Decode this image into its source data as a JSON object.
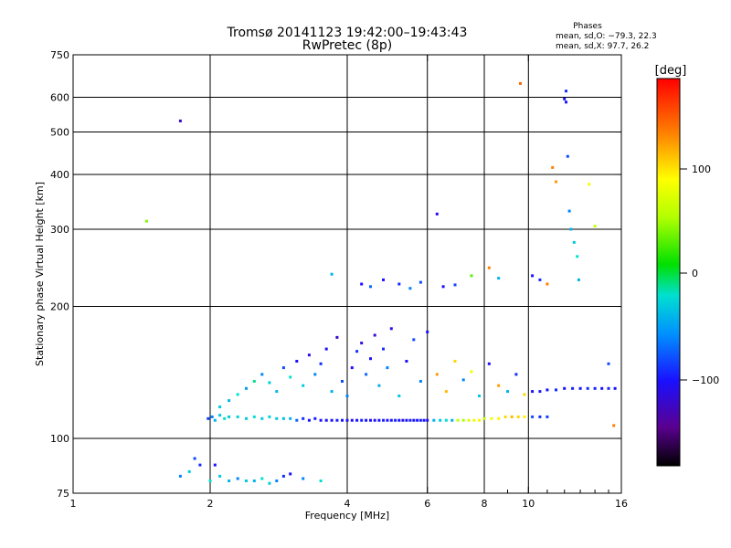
{
  "title_line1": "Tromsø 20141123 19:42:00–19:43:43",
  "title_line2": "RwPretec (8p)",
  "phase_header": "Phases",
  "phase_stats_o": "mean, sd,O: −79.3, 22.3",
  "phase_stats_x": "mean, sd,X:  97.7, 26.2",
  "colorbar_label": "[deg]",
  "colorbar_ticks": [
    "100",
    "0",
    "−100"
  ],
  "chart_data": {
    "type": "scatter",
    "title": "Tromsø 20141123 19:42:00–19:43:43",
    "subtitle": "RwPretec (8p)",
    "xlabel": "Frequency [MHz]",
    "ylabel": "Stationary phase Virtual Height [km]",
    "x_scale": "log2",
    "y_scale": "log",
    "xlim": [
      1,
      16
    ],
    "ylim": [
      75,
      750
    ],
    "x_ticks": [
      1,
      2,
      4,
      6,
      8,
      10,
      16
    ],
    "x_minor_ticks": [
      9,
      11,
      12,
      13,
      14,
      15
    ],
    "y_ticks": [
      75,
      100,
      200,
      300,
      400,
      500,
      600,
      750
    ],
    "grid_x": [
      2,
      4,
      6,
      8,
      10
    ],
    "grid_y": [
      100,
      200,
      300,
      400,
      500,
      600
    ],
    "colorbar": {
      "label": "[deg]",
      "range": [
        -180,
        180
      ],
      "ticks": [
        100,
        0,
        -100
      ]
    },
    "series": [
      {
        "points": [
          [
            1.98,
            111,
            -85
          ],
          [
            2.02,
            112,
            -60
          ],
          [
            2.05,
            110,
            -40
          ],
          [
            2.1,
            113,
            -30
          ],
          [
            2.15,
            111,
            -20
          ],
          [
            2.2,
            112,
            -30
          ],
          [
            2.3,
            112,
            -25
          ],
          [
            2.4,
            111,
            -30
          ],
          [
            2.5,
            112,
            -20
          ],
          [
            2.6,
            111,
            -30
          ],
          [
            2.7,
            112,
            -25
          ],
          [
            2.8,
            111,
            -30
          ],
          [
            2.9,
            111,
            -35
          ],
          [
            3.0,
            111,
            -40
          ],
          [
            3.1,
            110,
            -70
          ],
          [
            3.2,
            111,
            -90
          ],
          [
            3.3,
            110,
            -100
          ],
          [
            3.4,
            111,
            -95
          ],
          [
            3.5,
            110,
            -100
          ],
          [
            3.6,
            110,
            -105
          ],
          [
            3.7,
            110,
            -100
          ],
          [
            3.8,
            110,
            -95
          ],
          [
            3.9,
            110,
            -100
          ],
          [
            4.0,
            110,
            -100
          ],
          [
            4.1,
            110,
            -105
          ],
          [
            4.2,
            110,
            -100
          ],
          [
            4.3,
            110,
            -95
          ],
          [
            4.4,
            110,
            -100
          ],
          [
            4.5,
            110,
            -100
          ],
          [
            4.6,
            110,
            -105
          ],
          [
            4.7,
            110,
            -100
          ],
          [
            4.8,
            110,
            -95
          ],
          [
            4.9,
            110,
            -100
          ],
          [
            5.0,
            110,
            -100
          ],
          [
            5.1,
            110,
            -95
          ],
          [
            5.2,
            110,
            -100
          ],
          [
            5.3,
            110,
            -105
          ],
          [
            5.4,
            110,
            -100
          ],
          [
            5.5,
            110,
            -95
          ],
          [
            5.6,
            110,
            -100
          ],
          [
            5.7,
            110,
            -100
          ],
          [
            5.8,
            110,
            -95
          ],
          [
            5.9,
            110,
            -100
          ],
          [
            6.0,
            110,
            -100
          ],
          [
            6.2,
            110,
            -40
          ],
          [
            6.4,
            110,
            -30
          ],
          [
            6.6,
            110,
            -20
          ],
          [
            6.8,
            110,
            -40
          ],
          [
            7.0,
            110,
            60
          ],
          [
            7.2,
            110,
            50
          ],
          [
            7.4,
            110,
            70
          ],
          [
            7.6,
            110,
            80
          ],
          [
            7.8,
            110,
            90
          ],
          [
            8.0,
            111,
            60
          ],
          [
            8.3,
            111,
            80
          ],
          [
            8.6,
            111,
            90
          ],
          [
            8.9,
            112,
            100
          ],
          [
            9.2,
            112,
            110
          ],
          [
            9.5,
            112,
            100
          ],
          [
            9.8,
            112,
            90
          ],
          [
            10.2,
            112,
            -80
          ],
          [
            10.6,
            112,
            -90
          ],
          [
            11.0,
            112,
            -85
          ],
          [
            10.2,
            128,
            -100
          ],
          [
            10.6,
            128,
            -95
          ],
          [
            11.0,
            129,
            -100
          ],
          [
            11.5,
            129,
            -90
          ],
          [
            12.0,
            130,
            -100
          ],
          [
            12.5,
            130,
            -95
          ],
          [
            13.0,
            130,
            -100
          ],
          [
            13.5,
            130,
            -90
          ],
          [
            14.0,
            130,
            -95
          ],
          [
            14.5,
            130,
            -100
          ],
          [
            15.0,
            130,
            -95
          ],
          [
            15.5,
            130,
            -100
          ],
          [
            2.1,
            118,
            -30
          ],
          [
            2.2,
            122,
            -40
          ],
          [
            2.3,
            126,
            -20
          ],
          [
            2.4,
            130,
            -50
          ],
          [
            2.5,
            135,
            -10
          ],
          [
            2.6,
            140,
            -60
          ],
          [
            2.7,
            134,
            -30
          ],
          [
            2.8,
            128,
            -40
          ],
          [
            2.9,
            145,
            -80
          ],
          [
            3.0,
            138,
            -20
          ],
          [
            3.1,
            150,
            -100
          ],
          [
            3.2,
            132,
            -30
          ],
          [
            3.3,
            155,
            -110
          ],
          [
            3.4,
            140,
            -60
          ],
          [
            3.5,
            148,
            -90
          ],
          [
            3.6,
            160,
            -100
          ],
          [
            3.7,
            128,
            -40
          ],
          [
            3.8,
            170,
            -120
          ],
          [
            3.9,
            135,
            -80
          ],
          [
            4.0,
            125,
            -60
          ],
          [
            4.1,
            145,
            -100
          ],
          [
            4.2,
            158,
            -90
          ],
          [
            4.3,
            165,
            -110
          ],
          [
            4.4,
            140,
            -70
          ],
          [
            4.5,
            152,
            -100
          ],
          [
            4.6,
            172,
            -120
          ],
          [
            4.7,
            132,
            -40
          ],
          [
            4.8,
            160,
            -90
          ],
          [
            4.9,
            145,
            -60
          ],
          [
            5.0,
            178,
            -110
          ],
          [
            5.2,
            125,
            -30
          ],
          [
            5.4,
            150,
            -100
          ],
          [
            5.6,
            168,
            -80
          ],
          [
            5.8,
            135,
            -60
          ],
          [
            6.0,
            175,
            -100
          ],
          [
            6.3,
            140,
            120
          ],
          [
            6.6,
            128,
            110
          ],
          [
            6.9,
            150,
            100
          ],
          [
            7.2,
            136,
            -60
          ],
          [
            7.5,
            142,
            80
          ],
          [
            7.8,
            125,
            -30
          ],
          [
            8.2,
            148,
            -100
          ],
          [
            8.6,
            132,
            120
          ],
          [
            9.0,
            128,
            -40
          ],
          [
            9.4,
            140,
            -90
          ],
          [
            9.8,
            126,
            100
          ],
          [
            1.72,
            82,
            -60
          ],
          [
            1.8,
            84,
            -30
          ],
          [
            1.9,
            87,
            -90
          ],
          [
            2.0,
            80,
            -20
          ],
          [
            2.1,
            82,
            -30
          ],
          [
            2.2,
            80,
            -40
          ],
          [
            2.3,
            81,
            -60
          ],
          [
            2.4,
            80,
            -30
          ],
          [
            2.5,
            80,
            -40
          ],
          [
            2.6,
            81,
            -20
          ],
          [
            2.7,
            79,
            -30
          ],
          [
            2.8,
            80,
            -60
          ],
          [
            2.9,
            82,
            -90
          ],
          [
            3.0,
            83,
            -100
          ],
          [
            3.2,
            81,
            -60
          ],
          [
            3.5,
            80,
            -20
          ],
          [
            1.85,
            90,
            -80
          ],
          [
            2.05,
            87,
            -100
          ],
          [
            1.72,
            530,
            -120
          ],
          [
            1.45,
            313,
            40
          ],
          [
            3.7,
            237,
            -40
          ],
          [
            4.3,
            225,
            -100
          ],
          [
            4.5,
            222,
            -70
          ],
          [
            4.8,
            230,
            -100
          ],
          [
            5.2,
            225,
            -90
          ],
          [
            5.5,
            220,
            -60
          ],
          [
            5.8,
            227,
            -80
          ],
          [
            6.3,
            325,
            -110
          ],
          [
            6.5,
            222,
            -100
          ],
          [
            6.9,
            224,
            -80
          ],
          [
            7.5,
            235,
            30
          ],
          [
            8.2,
            245,
            130
          ],
          [
            8.6,
            232,
            -40
          ],
          [
            9.6,
            645,
            140
          ],
          [
            10.2,
            235,
            -100
          ],
          [
            10.6,
            230,
            -90
          ],
          [
            11.0,
            225,
            130
          ],
          [
            11.3,
            415,
            130
          ],
          [
            11.5,
            385,
            120
          ],
          [
            12.0,
            595,
            -100
          ],
          [
            12.1,
            620,
            -90
          ],
          [
            12.2,
            440,
            -80
          ],
          [
            12.3,
            330,
            -60
          ],
          [
            12.4,
            300,
            -40
          ],
          [
            12.6,
            280,
            -30
          ],
          [
            12.8,
            260,
            -20
          ],
          [
            12.9,
            230,
            -40
          ],
          [
            13.6,
            380,
            80
          ],
          [
            14.0,
            305,
            60
          ],
          [
            15.0,
            148,
            -80
          ],
          [
            15.4,
            107,
            130
          ],
          [
            12.1,
            585,
            -100
          ]
        ]
      }
    ]
  }
}
